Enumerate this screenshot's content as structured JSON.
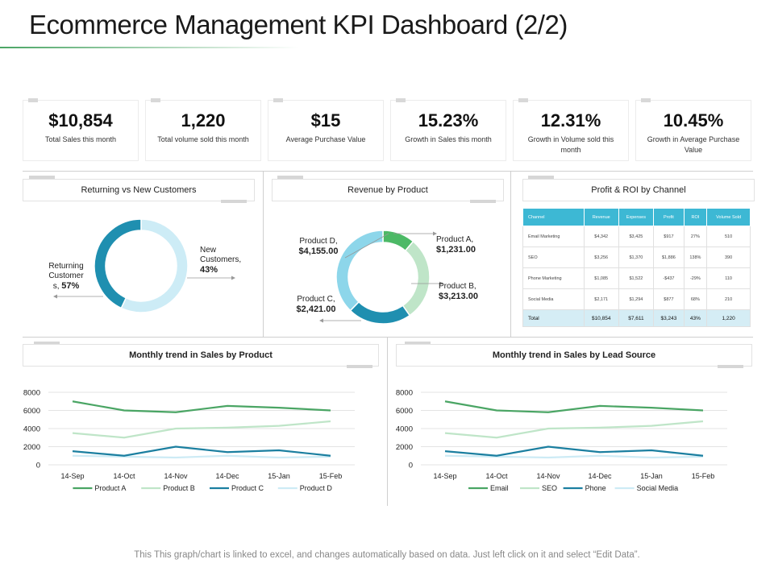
{
  "title": "Ecommerce Management KPI Dashboard (2/2)",
  "kpis": [
    {
      "value": "$10,854",
      "label": "Total Sales this month"
    },
    {
      "value": "1,220",
      "label": "Total volume sold this month"
    },
    {
      "value": "$15",
      "label": "Average Purchase Value"
    },
    {
      "value": "15.23%",
      "label": "Growth in Sales this month"
    },
    {
      "value": "12.31%",
      "label": "Growth in Volume sold this month"
    },
    {
      "value": "10.45%",
      "label": "Growth in Average Purchase Value"
    }
  ],
  "panels": {
    "customers": "Returning vs New Customers",
    "revenue": "Revenue by Product",
    "roi": "Profit & ROI by Channel",
    "trend_product": "Monthly trend in Sales by Product",
    "trend_lead": "Monthly trend in Sales by Lead Source"
  },
  "customers_labels": {
    "returning_name": "Returning Customer s,",
    "returning_pct": "57%",
    "new_name": "New Customers,",
    "new_pct": "43%"
  },
  "revenue_labels": {
    "a_name": "Product A,",
    "a_value": "$1,231.00",
    "b_name": "Product B,",
    "b_value": "$3,213.00",
    "c_name": "Product C,",
    "c_value": "$2,421.00",
    "d_name": "Product D,",
    "d_value": "$4,155.00"
  },
  "roi_table": {
    "headers": [
      "Channel",
      "Revenue",
      "Expenses",
      "Profit",
      "ROI",
      "Volume Sold"
    ],
    "rows": [
      [
        "Email Marketing",
        "$4,342",
        "$3,425",
        "$917",
        "27%",
        "510"
      ],
      [
        "SEO",
        "$3,256",
        "$1,370",
        "$1,886",
        "138%",
        "390"
      ],
      [
        "Phone Marketing",
        "$1,085",
        "$1,522",
        "-$437",
        "-29%",
        "110"
      ],
      [
        "Social Media",
        "$2,171",
        "$1,294",
        "$877",
        "68%",
        "210"
      ]
    ],
    "total": [
      "Total",
      "$10,854",
      "$7,611",
      "$3,243",
      "43%",
      "1,220"
    ]
  },
  "footer": "This This graph/chart is linked to excel, and changes automatically based on data. Just left click on it and select “Edit Data”.",
  "chart_data": [
    {
      "type": "pie",
      "title": "Returning vs New Customers",
      "categories": [
        "Returning Customer s",
        "New Customers"
      ],
      "values": [
        57,
        43
      ],
      "colors": [
        "#cdecf6",
        "#1f8fb0"
      ]
    },
    {
      "type": "pie",
      "title": "Revenue by Product",
      "categories": [
        "Product A",
        "Product B",
        "Product C",
        "Product D"
      ],
      "values": [
        1231,
        3213,
        2421,
        4155
      ],
      "colors": [
        "#4cb966",
        "#bfe5c8",
        "#1f8fb0",
        "#8dd6ea"
      ]
    },
    {
      "type": "line",
      "title": "Monthly trend in Sales by Product",
      "x": [
        "14-Sep",
        "14-Oct",
        "14-Nov",
        "14-Dec",
        "15-Jan",
        "15-Feb"
      ],
      "ylim": [
        0,
        8000
      ],
      "yticks": [
        0,
        2000,
        4000,
        6000,
        8000
      ],
      "grid": true,
      "legend": "bottom",
      "series": [
        {
          "name": "Product A",
          "color": "#4aa564",
          "values": [
            7000,
            6000,
            5800,
            6500,
            6300,
            6000
          ]
        },
        {
          "name": "Product B",
          "color": "#bfe5c8",
          "values": [
            3500,
            3000,
            4000,
            4100,
            4300,
            4800
          ]
        },
        {
          "name": "Product C",
          "color": "#1b7fa0",
          "values": [
            1500,
            1000,
            2000,
            1400,
            1600,
            1000
          ]
        },
        {
          "name": "Product D",
          "color": "#cdebf5",
          "values": [
            1000,
            900,
            800,
            1000,
            800,
            900
          ]
        }
      ]
    },
    {
      "type": "line",
      "title": "Monthly trend in Sales by Lead Source",
      "x": [
        "14-Sep",
        "14-Oct",
        "14-Nov",
        "14-Dec",
        "15-Jan",
        "15-Feb"
      ],
      "ylim": [
        0,
        8000
      ],
      "yticks": [
        0,
        2000,
        4000,
        6000,
        8000
      ],
      "grid": true,
      "legend": "bottom",
      "series": [
        {
          "name": "Email",
          "color": "#4aa564",
          "values": [
            7000,
            6000,
            5800,
            6500,
            6300,
            6000
          ]
        },
        {
          "name": "SEO",
          "color": "#bfe5c8",
          "values": [
            3500,
            3000,
            4000,
            4100,
            4300,
            4800
          ]
        },
        {
          "name": "Phone",
          "color": "#1b7fa0",
          "values": [
            1500,
            1000,
            2000,
            1400,
            1600,
            1000
          ]
        },
        {
          "name": "Social Media",
          "color": "#cdebf5",
          "values": [
            1000,
            900,
            800,
            1000,
            800,
            900
          ]
        }
      ]
    }
  ]
}
